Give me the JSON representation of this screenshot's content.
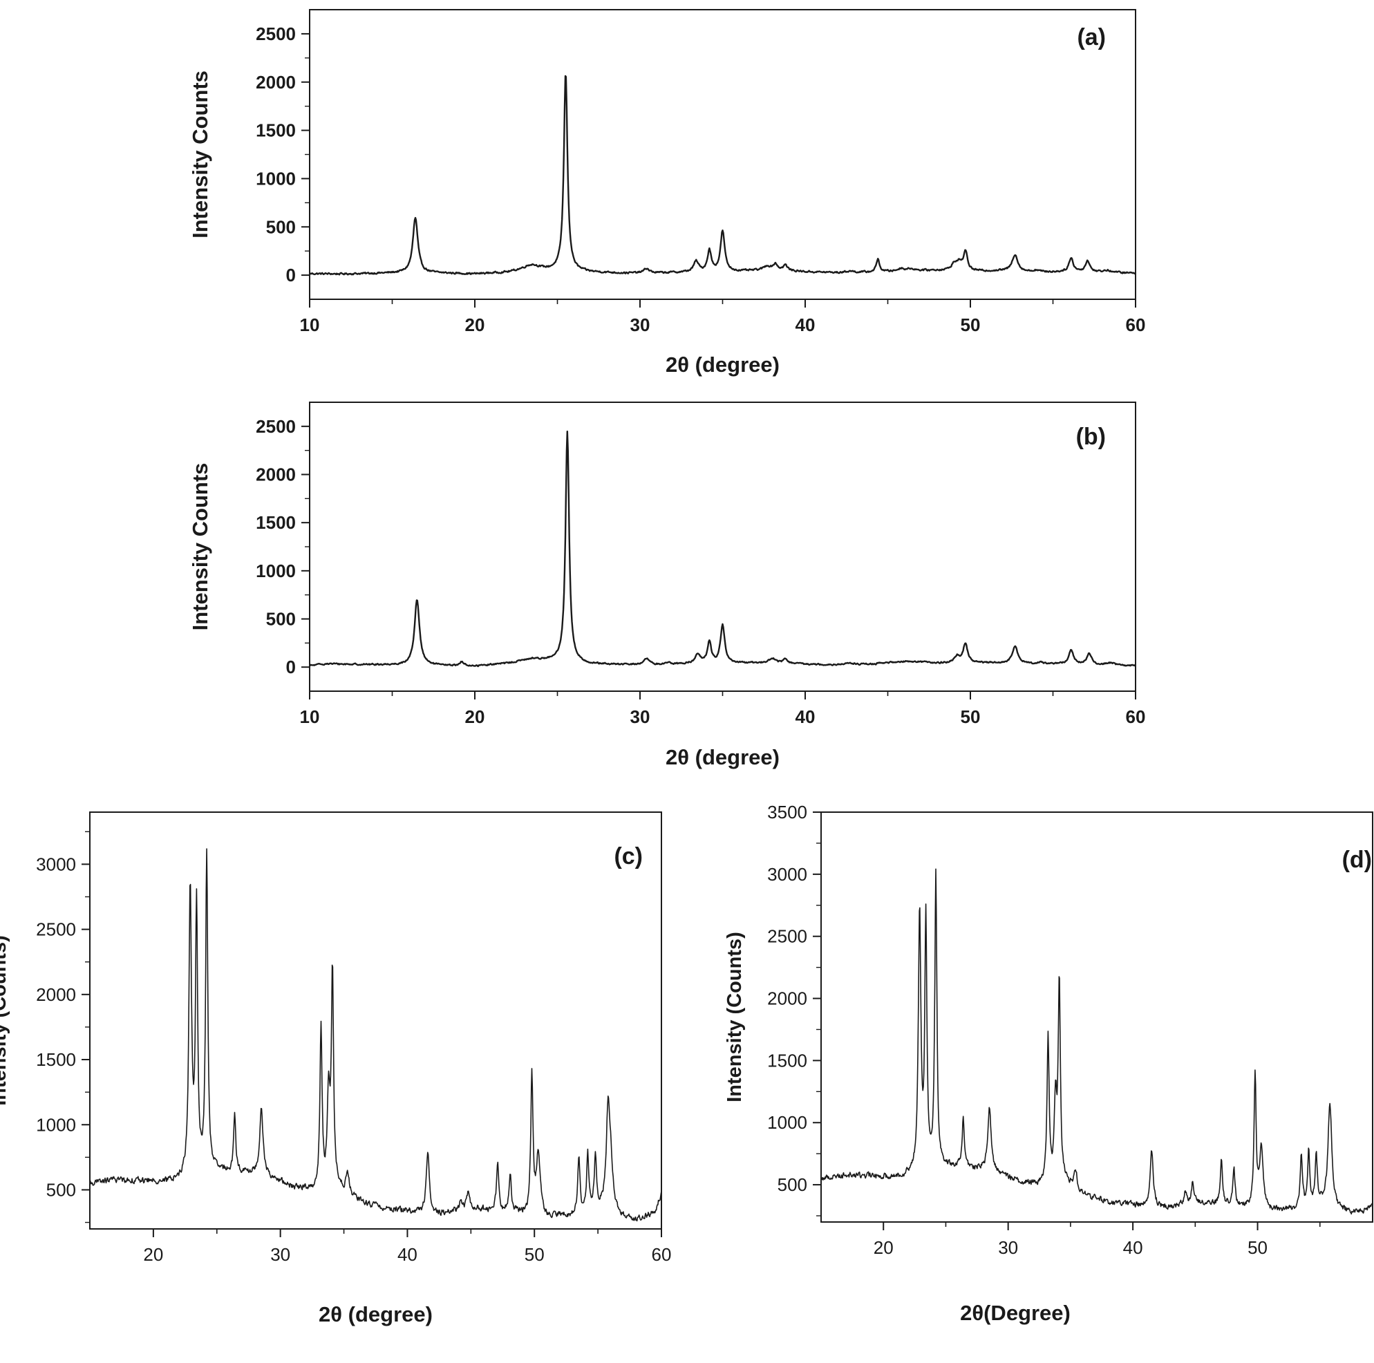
{
  "chart_data": [
    {
      "id": "a",
      "type": "line",
      "panel_label": "(a)",
      "xlabel": "2θ (degree)",
      "ylabel": "Intensity Counts",
      "xlim": [
        10,
        60
      ],
      "ylim": [
        -250,
        2750
      ],
      "xticks": [
        10,
        20,
        30,
        40,
        50,
        60
      ],
      "yticks": [
        0,
        500,
        1000,
        1500,
        2000,
        2500
      ],
      "legend": "none",
      "grid": false,
      "baseline": [
        [
          10,
          15
        ],
        [
          12,
          12
        ],
        [
          14,
          18
        ],
        [
          16,
          25
        ],
        [
          18,
          20
        ],
        [
          20,
          12
        ],
        [
          22,
          28
        ],
        [
          23.5,
          65
        ],
        [
          24.5,
          50
        ],
        [
          27,
          30
        ],
        [
          29,
          20
        ],
        [
          31,
          22
        ],
        [
          33,
          30
        ],
        [
          36,
          40
        ],
        [
          38,
          55
        ],
        [
          40,
          35
        ],
        [
          42,
          25
        ],
        [
          44,
          30
        ],
        [
          46,
          45
        ],
        [
          48,
          50
        ],
        [
          50,
          40
        ],
        [
          52,
          45
        ],
        [
          54,
          30
        ],
        [
          56,
          35
        ],
        [
          58,
          30
        ],
        [
          60,
          20
        ]
      ],
      "peaks": [
        [
          16.4,
          570,
          0.18
        ],
        [
          23.4,
          40,
          0.6
        ],
        [
          25.5,
          2060,
          0.13
        ],
        [
          30.4,
          45,
          0.2
        ],
        [
          33.4,
          110,
          0.18
        ],
        [
          34.2,
          220,
          0.14
        ],
        [
          35.0,
          420,
          0.15
        ],
        [
          37.7,
          40,
          0.25
        ],
        [
          38.2,
          60,
          0.15
        ],
        [
          38.8,
          55,
          0.15
        ],
        [
          42.7,
          15,
          0.3
        ],
        [
          44.4,
          130,
          0.12
        ],
        [
          45.8,
          25,
          0.2
        ],
        [
          46.4,
          20,
          0.3
        ],
        [
          49.0,
          60,
          0.2
        ],
        [
          49.3,
          80,
          0.18
        ],
        [
          49.7,
          200,
          0.15
        ],
        [
          52.7,
          175,
          0.2
        ],
        [
          54.0,
          20,
          0.25
        ],
        [
          56.1,
          140,
          0.16
        ],
        [
          57.1,
          115,
          0.16
        ],
        [
          58.3,
          20,
          0.3
        ]
      ],
      "noise": 14
    },
    {
      "id": "b",
      "type": "line",
      "panel_label": "(b)",
      "xlabel": "2θ (degree)",
      "ylabel": "Intensity Counts",
      "xlim": [
        10,
        60
      ],
      "ylim": [
        -250,
        2750
      ],
      "xticks": [
        10,
        20,
        30,
        40,
        50,
        60
      ],
      "yticks": [
        0,
        500,
        1000,
        1500,
        2000,
        2500
      ],
      "legend": "none",
      "grid": false,
      "baseline": [
        [
          10,
          15
        ],
        [
          11,
          35
        ],
        [
          12,
          30
        ],
        [
          14,
          25
        ],
        [
          16,
          20
        ],
        [
          18,
          15
        ],
        [
          20,
          10
        ],
        [
          22,
          40
        ],
        [
          23.5,
          85
        ],
        [
          24.5,
          70
        ],
        [
          27,
          30
        ],
        [
          29,
          25
        ],
        [
          31,
          25
        ],
        [
          33,
          35
        ],
        [
          36,
          40
        ],
        [
          38,
          45
        ],
        [
          40,
          30
        ],
        [
          42,
          25
        ],
        [
          44,
          30
        ],
        [
          46,
          60
        ],
        [
          47,
          55
        ],
        [
          48,
          40
        ],
        [
          50,
          45
        ],
        [
          52,
          40
        ],
        [
          54,
          30
        ],
        [
          56,
          35
        ],
        [
          58,
          25
        ],
        [
          60,
          15
        ]
      ],
      "peaks": [
        [
          16.5,
          680,
          0.18
        ],
        [
          19.2,
          40,
          0.15
        ],
        [
          25.6,
          2400,
          0.13
        ],
        [
          30.4,
          60,
          0.2
        ],
        [
          31.7,
          20,
          0.15
        ],
        [
          33.5,
          100,
          0.18
        ],
        [
          34.2,
          220,
          0.14
        ],
        [
          35.0,
          400,
          0.15
        ],
        [
          38.0,
          50,
          0.2
        ],
        [
          38.8,
          45,
          0.15
        ],
        [
          42.7,
          15,
          0.3
        ],
        [
          49.2,
          70,
          0.22
        ],
        [
          49.7,
          200,
          0.15
        ],
        [
          52.7,
          175,
          0.2
        ],
        [
          54.2,
          20,
          0.25
        ],
        [
          56.1,
          145,
          0.16
        ],
        [
          57.2,
          110,
          0.16
        ],
        [
          58.5,
          20,
          0.3
        ]
      ],
      "noise": 12
    },
    {
      "id": "c",
      "type": "line",
      "panel_label": "(c)",
      "xlabel": "2θ (degree)",
      "ylabel": "Intensity (Counts)",
      "xlim": [
        15,
        60
      ],
      "ylim": [
        200,
        3400
      ],
      "xticks": [
        20,
        30,
        40,
        50,
        60
      ],
      "yticks": [
        500,
        1000,
        1500,
        2000,
        2500,
        3000
      ],
      "legend": "none",
      "grid": false,
      "baseline": [
        [
          15,
          550
        ],
        [
          17,
          580
        ],
        [
          19,
          570
        ],
        [
          21,
          560
        ],
        [
          22.5,
          580
        ],
        [
          24.5,
          640
        ],
        [
          26,
          640
        ],
        [
          28,
          620
        ],
        [
          29,
          600
        ],
        [
          31,
          520
        ],
        [
          32.5,
          500
        ],
        [
          34.5,
          520
        ],
        [
          36,
          420
        ],
        [
          38,
          360
        ],
        [
          40,
          340
        ],
        [
          41,
          320
        ],
        [
          43,
          320
        ],
        [
          45,
          360
        ],
        [
          47,
          340
        ],
        [
          49,
          320
        ],
        [
          51,
          290
        ],
        [
          53,
          300
        ],
        [
          55,
          350
        ],
        [
          56.5,
          300
        ],
        [
          58,
          270
        ],
        [
          59.5,
          330
        ],
        [
          60,
          470
        ]
      ],
      "peaks": [
        [
          22.9,
          2200,
          0.12
        ],
        [
          23.4,
          2050,
          0.1
        ],
        [
          24.2,
          2450,
          0.1
        ],
        [
          26.4,
          420,
          0.1
        ],
        [
          28.5,
          500,
          0.16
        ],
        [
          33.2,
          1230,
          0.1
        ],
        [
          33.8,
          700,
          0.12
        ],
        [
          34.1,
          1650,
          0.1
        ],
        [
          35.3,
          150,
          0.15
        ],
        [
          41.6,
          460,
          0.15
        ],
        [
          44.2,
          80,
          0.12
        ],
        [
          44.8,
          150,
          0.12
        ],
        [
          47.1,
          380,
          0.1
        ],
        [
          48.1,
          300,
          0.1
        ],
        [
          49.8,
          1080,
          0.1
        ],
        [
          50.3,
          480,
          0.18
        ],
        [
          53.5,
          450,
          0.1
        ],
        [
          54.2,
          430,
          0.1
        ],
        [
          54.8,
          400,
          0.1
        ],
        [
          55.8,
          720,
          0.18
        ],
        [
          56.0,
          300,
          0.2
        ]
      ],
      "noise": 35
    },
    {
      "id": "d",
      "type": "line",
      "panel_label": "(d)",
      "xlabel": "2θ(Degree)",
      "ylabel": "Intensity (Counts)",
      "xlim": [
        15,
        60
      ],
      "ylim": [
        200,
        3500
      ],
      "xticks": [
        20,
        30,
        40,
        50,
        60
      ],
      "yticks": [
        500,
        1000,
        1500,
        2000,
        2500,
        3000,
        3500
      ],
      "legend": "none",
      "grid": false,
      "baseline": [
        [
          15,
          550
        ],
        [
          17,
          580
        ],
        [
          19,
          570
        ],
        [
          21,
          560
        ],
        [
          22.5,
          580
        ],
        [
          24.5,
          640
        ],
        [
          26,
          640
        ],
        [
          28,
          620
        ],
        [
          29,
          600
        ],
        [
          31,
          520
        ],
        [
          32.5,
          500
        ],
        [
          34.5,
          520
        ],
        [
          36,
          420
        ],
        [
          38,
          360
        ],
        [
          40,
          340
        ],
        [
          41,
          320
        ],
        [
          43,
          320
        ],
        [
          45,
          360
        ],
        [
          47,
          340
        ],
        [
          49,
          320
        ],
        [
          51,
          290
        ],
        [
          53,
          300
        ],
        [
          55,
          350
        ],
        [
          56.5,
          300
        ],
        [
          58,
          270
        ],
        [
          59.5,
          330
        ],
        [
          60,
          380
        ]
      ],
      "peaks": [
        [
          22.9,
          2100,
          0.12
        ],
        [
          23.4,
          2000,
          0.1
        ],
        [
          24.2,
          2350,
          0.1
        ],
        [
          26.4,
          400,
          0.1
        ],
        [
          28.5,
          500,
          0.16
        ],
        [
          33.2,
          1180,
          0.1
        ],
        [
          33.8,
          650,
          0.12
        ],
        [
          34.1,
          1620,
          0.1
        ],
        [
          35.4,
          150,
          0.15
        ],
        [
          41.5,
          460,
          0.15
        ],
        [
          44.2,
          100,
          0.12
        ],
        [
          44.8,
          160,
          0.12
        ],
        [
          47.1,
          380,
          0.1
        ],
        [
          48.1,
          300,
          0.1
        ],
        [
          49.8,
          1060,
          0.1
        ],
        [
          50.3,
          480,
          0.18
        ],
        [
          53.5,
          420,
          0.1
        ],
        [
          54.1,
          430,
          0.1
        ],
        [
          54.7,
          380,
          0.1
        ],
        [
          55.8,
          840,
          0.18
        ]
      ],
      "noise": 35
    }
  ]
}
